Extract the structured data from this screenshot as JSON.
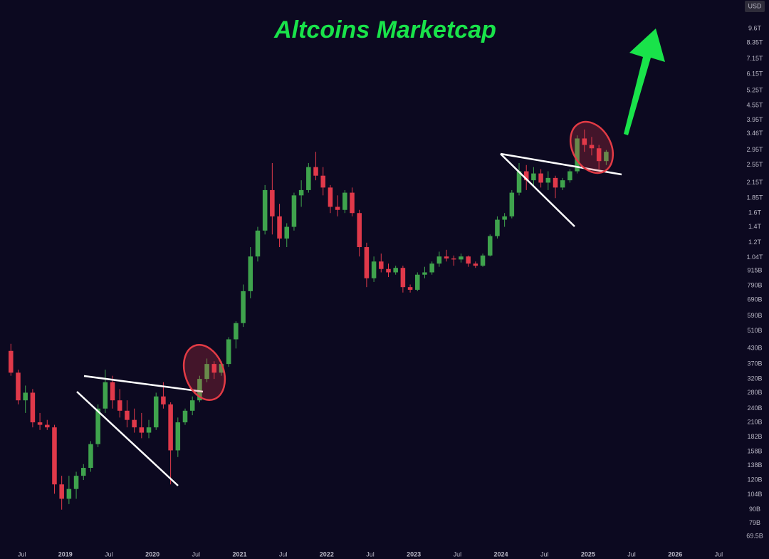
{
  "chart_data": {
    "type": "candlestick",
    "title": "Altcoins Marketcap",
    "currency_label": "USD",
    "log_scale": true,
    "grid": false,
    "up_color": "#3fa34d",
    "down_color": "#e0394a",
    "xlim": [
      "2018-04",
      "2026-10"
    ],
    "xticks": [
      {
        "value": "2018-07",
        "label": "Jul"
      },
      {
        "value": "2019-01",
        "label": "2019"
      },
      {
        "value": "2019-07",
        "label": "Jul"
      },
      {
        "value": "2020-01",
        "label": "2020"
      },
      {
        "value": "2020-07",
        "label": "Jul"
      },
      {
        "value": "2021-01",
        "label": "2021"
      },
      {
        "value": "2021-07",
        "label": "Jul"
      },
      {
        "value": "2022-01",
        "label": "2022"
      },
      {
        "value": "2022-07",
        "label": "Jul"
      },
      {
        "value": "2023-01",
        "label": "2023"
      },
      {
        "value": "2023-07",
        "label": "Jul"
      },
      {
        "value": "2024-01",
        "label": "2024"
      },
      {
        "value": "2024-07",
        "label": "Jul"
      },
      {
        "value": "2025-01",
        "label": "2025"
      },
      {
        "value": "2025-07",
        "label": "Jul"
      },
      {
        "value": "2026-01",
        "label": "2026"
      },
      {
        "value": "2026-07",
        "label": "Jul"
      }
    ],
    "ylim": [
      62.7,
      12650
    ],
    "yticks": [
      {
        "value": 9600,
        "label": "9.6T"
      },
      {
        "value": 8350,
        "label": "8.35T"
      },
      {
        "value": 7150,
        "label": "7.15T"
      },
      {
        "value": 6150,
        "label": "6.15T"
      },
      {
        "value": 5250,
        "label": "5.25T"
      },
      {
        "value": 4550,
        "label": "4.55T"
      },
      {
        "value": 3950,
        "label": "3.95T"
      },
      {
        "value": 3460,
        "label": "3.46T"
      },
      {
        "value": 2950,
        "label": "2.95T"
      },
      {
        "value": 2550,
        "label": "2.55T"
      },
      {
        "value": 2150,
        "label": "2.15T"
      },
      {
        "value": 1850,
        "label": "1.85T"
      },
      {
        "value": 1600,
        "label": "1.6T"
      },
      {
        "value": 1400,
        "label": "1.4T"
      },
      {
        "value": 1200,
        "label": "1.2T"
      },
      {
        "value": 1040,
        "label": "1.04T"
      },
      {
        "value": 915,
        "label": "915B"
      },
      {
        "value": 790,
        "label": "790B"
      },
      {
        "value": 690,
        "label": "690B"
      },
      {
        "value": 590,
        "label": "590B"
      },
      {
        "value": 510,
        "label": "510B"
      },
      {
        "value": 430,
        "label": "430B"
      },
      {
        "value": 370,
        "label": "370B"
      },
      {
        "value": 320,
        "label": "320B"
      },
      {
        "value": 280,
        "label": "280B"
      },
      {
        "value": 240,
        "label": "240B"
      },
      {
        "value": 210,
        "label": "210B"
      },
      {
        "value": 182,
        "label": "182B"
      },
      {
        "value": 158,
        "label": "158B"
      },
      {
        "value": 138,
        "label": "138B"
      },
      {
        "value": 120,
        "label": "120B"
      },
      {
        "value": 104,
        "label": "104B"
      },
      {
        "value": 90,
        "label": "90B"
      },
      {
        "value": 79,
        "label": "79B"
      },
      {
        "value": 69.5,
        "label": "69.5B"
      }
    ],
    "x": [
      "2018-05",
      "2018-06",
      "2018-07",
      "2018-08",
      "2018-09",
      "2018-10",
      "2018-11",
      "2018-12",
      "2019-01",
      "2019-02",
      "2019-03",
      "2019-04",
      "2019-05",
      "2019-06",
      "2019-07",
      "2019-08",
      "2019-09",
      "2019-10",
      "2019-11",
      "2019-12",
      "2020-01",
      "2020-02",
      "2020-03",
      "2020-04",
      "2020-05",
      "2020-06",
      "2020-07",
      "2020-08",
      "2020-09",
      "2020-10",
      "2020-11",
      "2020-12",
      "2021-01",
      "2021-02",
      "2021-03",
      "2021-04",
      "2021-05",
      "2021-06",
      "2021-07",
      "2021-08",
      "2021-09",
      "2021-10",
      "2021-11",
      "2021-12",
      "2022-01",
      "2022-02",
      "2022-03",
      "2022-04",
      "2022-05",
      "2022-06",
      "2022-07",
      "2022-08",
      "2022-09",
      "2022-10",
      "2022-11",
      "2022-12",
      "2023-01",
      "2023-02",
      "2023-03",
      "2023-04",
      "2023-05",
      "2023-06",
      "2023-07",
      "2023-08",
      "2023-09",
      "2023-10",
      "2023-11",
      "2023-12",
      "2024-01",
      "2024-02",
      "2024-03",
      "2024-04",
      "2024-05",
      "2024-06",
      "2024-07",
      "2024-08",
      "2024-09",
      "2024-10",
      "2024-11",
      "2024-12",
      "2025-01",
      "2025-02",
      "2025-03"
    ],
    "open": [
      420,
      340,
      260,
      280,
      210,
      205,
      200,
      115,
      100,
      110,
      125,
      135,
      170,
      240,
      310,
      260,
      235,
      215,
      200,
      190,
      200,
      270,
      250,
      160,
      210,
      235,
      260,
      320,
      370,
      340,
      370,
      470,
      550,
      750,
      1050,
      1350,
      2000,
      1550,
      1250,
      1400,
      1900,
      2000,
      2500,
      2300,
      2050,
      1700,
      1650,
      1950,
      1600,
      1150,
      850,
      1000,
      930,
      900,
      940,
      780,
      760,
      880,
      900,
      980,
      1050,
      1030,
      1020,
      1050,
      980,
      960,
      1060,
      1280,
      1500,
      1550,
      1950,
      2400,
      2200,
      2350,
      2150,
      2250,
      2050,
      2200,
      2400,
      3300,
      3100,
      3000,
      2650
    ],
    "high": [
      450,
      350,
      300,
      290,
      230,
      215,
      205,
      125,
      125,
      130,
      140,
      175,
      250,
      350,
      330,
      290,
      260,
      240,
      230,
      215,
      280,
      310,
      255,
      220,
      240,
      270,
      330,
      390,
      380,
      380,
      480,
      560,
      800,
      1150,
      1400,
      2100,
      2600,
      1750,
      1450,
      1950,
      2200,
      2600,
      2900,
      2500,
      2100,
      1900,
      2000,
      2050,
      1650,
      1200,
      1050,
      1080,
      980,
      960,
      960,
      800,
      900,
      950,
      1000,
      1100,
      1120,
      1060,
      1080,
      1060,
      1000,
      1080,
      1300,
      1550,
      1600,
      2000,
      2600,
      2550,
      2500,
      2450,
      2400,
      2300,
      2250,
      2450,
      3400,
      3600,
      3350,
      3100,
      2950
    ],
    "low": [
      330,
      250,
      230,
      200,
      195,
      195,
      105,
      90,
      95,
      100,
      120,
      130,
      165,
      230,
      240,
      220,
      200,
      190,
      180,
      180,
      195,
      240,
      115,
      150,
      205,
      225,
      255,
      310,
      320,
      330,
      360,
      430,
      530,
      700,
      1000,
      1300,
      1300,
      1150,
      1150,
      1350,
      1700,
      1950,
      2200,
      1900,
      1600,
      1550,
      1600,
      1550,
      1050,
      780,
      820,
      900,
      860,
      880,
      740,
      740,
      750,
      850,
      880,
      950,
      1000,
      960,
      990,
      950,
      940,
      950,
      1050,
      1250,
      1400,
      1520,
      1900,
      2000,
      2100,
      2050,
      2000,
      1850,
      2000,
      2150,
      2350,
      2900,
      2800,
      2450,
      2550
    ],
    "close": [
      340,
      260,
      280,
      210,
      205,
      200,
      115,
      100,
      110,
      125,
      135,
      170,
      240,
      310,
      260,
      235,
      215,
      200,
      190,
      200,
      270,
      250,
      160,
      210,
      235,
      260,
      320,
      370,
      340,
      370,
      470,
      550,
      750,
      1050,
      1350,
      2000,
      1550,
      1250,
      1400,
      1900,
      2000,
      2500,
      2300,
      2050,
      1700,
      1650,
      1950,
      1600,
      1150,
      850,
      1000,
      930,
      900,
      940,
      780,
      760,
      880,
      900,
      980,
      1050,
      1030,
      1020,
      1050,
      980,
      960,
      1060,
      1280,
      1500,
      1550,
      1950,
      2400,
      2200,
      2350,
      2150,
      2250,
      2050,
      2200,
      2400,
      3300,
      3100,
      3000,
      2650,
      2900
    ]
  }
}
